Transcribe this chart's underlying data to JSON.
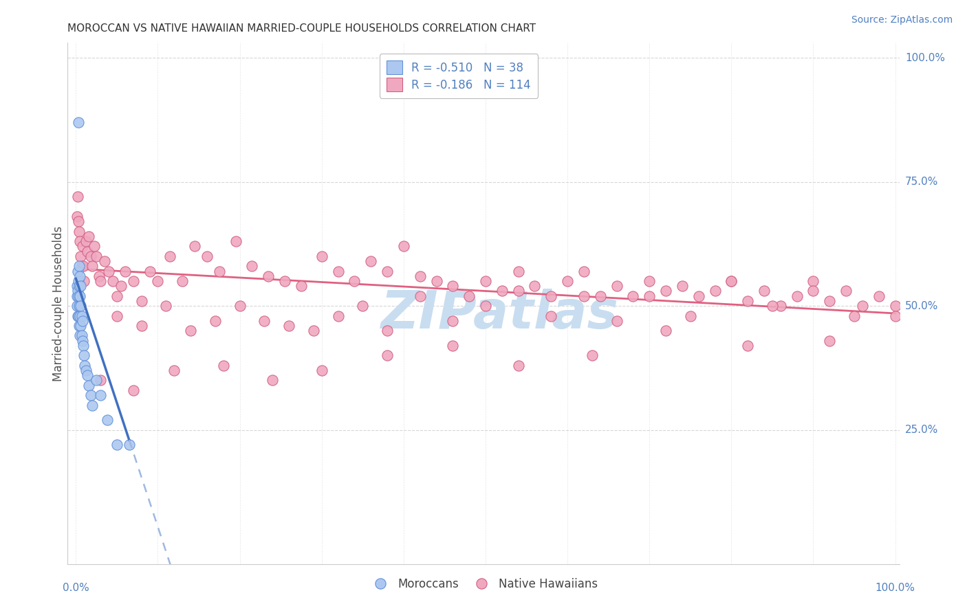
{
  "title": "MOROCCAN VS NATIVE HAWAIIAN MARRIED-COUPLE HOUSEHOLDS CORRELATION CHART",
  "source": "Source: ZipAtlas.com",
  "ylabel": "Married-couple Households",
  "moroccan_color": "#adc8f0",
  "moroccan_edge_color": "#6090d8",
  "hawaiian_color": "#f0a8c0",
  "hawaiian_edge_color": "#d06080",
  "trendline_moroccan_color": "#4070c0",
  "trendline_hawaiian_color": "#e06080",
  "trendline_moroccan_dash_color": "#a0b8e0",
  "background_color": "#ffffff",
  "grid_color": "#cccccc",
  "tick_color": "#5080c0",
  "watermark_color": "#c8ddf0",
  "title_color": "#333333",
  "ylabel_color": "#555555",
  "source_color": "#5080c0",
  "moroccan_R": -0.51,
  "moroccan_N": 38,
  "hawaiian_R": -0.186,
  "hawaiian_N": 114,
  "moroccan_x": [
    0.001,
    0.001,
    0.001,
    0.002,
    0.002,
    0.002,
    0.003,
    0.003,
    0.003,
    0.003,
    0.004,
    0.004,
    0.004,
    0.004,
    0.005,
    0.005,
    0.005,
    0.005,
    0.006,
    0.006,
    0.006,
    0.007,
    0.007,
    0.008,
    0.008,
    0.009,
    0.01,
    0.011,
    0.012,
    0.014,
    0.016,
    0.018,
    0.02,
    0.025,
    0.03,
    0.038,
    0.05,
    0.065
  ],
  "moroccan_y": [
    0.5,
    0.52,
    0.54,
    0.48,
    0.53,
    0.57,
    0.48,
    0.52,
    0.55,
    0.87,
    0.46,
    0.5,
    0.54,
    0.58,
    0.44,
    0.48,
    0.52,
    0.56,
    0.46,
    0.5,
    0.54,
    0.44,
    0.48,
    0.43,
    0.47,
    0.42,
    0.4,
    0.38,
    0.37,
    0.36,
    0.34,
    0.32,
    0.3,
    0.35,
    0.32,
    0.27,
    0.22,
    0.22
  ],
  "hawaiian_x": [
    0.001,
    0.002,
    0.003,
    0.004,
    0.005,
    0.006,
    0.007,
    0.008,
    0.009,
    0.01,
    0.012,
    0.014,
    0.016,
    0.018,
    0.02,
    0.022,
    0.025,
    0.028,
    0.03,
    0.035,
    0.04,
    0.045,
    0.05,
    0.055,
    0.06,
    0.07,
    0.08,
    0.09,
    0.1,
    0.115,
    0.13,
    0.145,
    0.16,
    0.175,
    0.195,
    0.215,
    0.235,
    0.255,
    0.275,
    0.3,
    0.32,
    0.34,
    0.36,
    0.38,
    0.4,
    0.42,
    0.44,
    0.46,
    0.48,
    0.5,
    0.52,
    0.54,
    0.56,
    0.58,
    0.6,
    0.62,
    0.64,
    0.66,
    0.68,
    0.7,
    0.72,
    0.74,
    0.76,
    0.78,
    0.8,
    0.82,
    0.84,
    0.86,
    0.88,
    0.9,
    0.92,
    0.94,
    0.96,
    0.98,
    1.0,
    0.05,
    0.08,
    0.11,
    0.14,
    0.17,
    0.2,
    0.23,
    0.26,
    0.29,
    0.32,
    0.35,
    0.38,
    0.42,
    0.46,
    0.5,
    0.54,
    0.58,
    0.62,
    0.66,
    0.7,
    0.75,
    0.8,
    0.85,
    0.9,
    0.95,
    0.03,
    0.07,
    0.12,
    0.18,
    0.24,
    0.3,
    0.38,
    0.46,
    0.54,
    0.63,
    0.72,
    0.82,
    0.92,
    1.0
  ],
  "hawaiian_y": [
    0.68,
    0.72,
    0.67,
    0.65,
    0.63,
    0.6,
    0.58,
    0.62,
    0.58,
    0.55,
    0.63,
    0.61,
    0.64,
    0.6,
    0.58,
    0.62,
    0.6,
    0.56,
    0.55,
    0.59,
    0.57,
    0.55,
    0.52,
    0.54,
    0.57,
    0.55,
    0.51,
    0.57,
    0.55,
    0.6,
    0.55,
    0.62,
    0.6,
    0.57,
    0.63,
    0.58,
    0.56,
    0.55,
    0.54,
    0.6,
    0.57,
    0.55,
    0.59,
    0.57,
    0.62,
    0.56,
    0.55,
    0.54,
    0.52,
    0.55,
    0.53,
    0.57,
    0.54,
    0.52,
    0.55,
    0.57,
    0.52,
    0.54,
    0.52,
    0.55,
    0.53,
    0.54,
    0.52,
    0.53,
    0.55,
    0.51,
    0.53,
    0.5,
    0.52,
    0.55,
    0.51,
    0.53,
    0.5,
    0.52,
    0.5,
    0.48,
    0.46,
    0.5,
    0.45,
    0.47,
    0.5,
    0.47,
    0.46,
    0.45,
    0.48,
    0.5,
    0.45,
    0.52,
    0.47,
    0.5,
    0.53,
    0.48,
    0.52,
    0.47,
    0.52,
    0.48,
    0.55,
    0.5,
    0.53,
    0.48,
    0.35,
    0.33,
    0.37,
    0.38,
    0.35,
    0.37,
    0.4,
    0.42,
    0.38,
    0.4,
    0.45,
    0.42,
    0.43,
    0.48
  ],
  "moroccan_trend_x0": 0.0,
  "moroccan_trend_y0": 0.555,
  "moroccan_trend_slope": -5.0,
  "moroccan_trend_solid_end": 0.065,
  "moroccan_trend_dash_end": 0.5,
  "hawaiian_trend_x0": 0.0,
  "hawaiian_trend_y0": 0.575,
  "hawaiian_trend_slope": -0.09,
  "hawaiian_trend_end": 1.0,
  "xlim": [
    0.0,
    1.0
  ],
  "ylim": [
    0.0,
    1.0
  ],
  "yticks": [
    0.25,
    0.5,
    0.75,
    1.0
  ],
  "ytick_labels_right": [
    "25.0%",
    "50.0%",
    "75.0%",
    "100.0%"
  ],
  "xtick_left_label": "0.0%",
  "xtick_right_label": "100.0%"
}
